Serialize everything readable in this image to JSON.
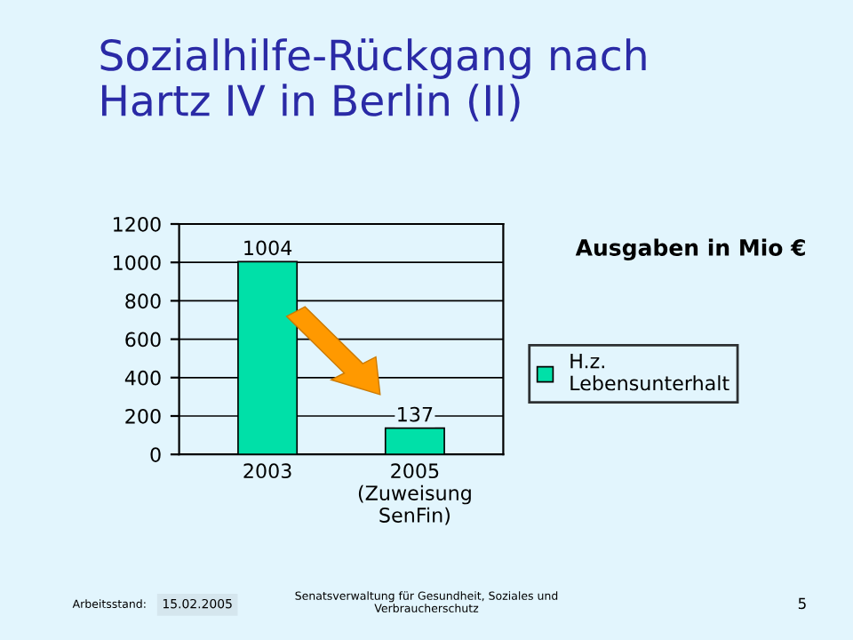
{
  "chart_data": {
    "type": "bar",
    "title": "Sozialhilfe-Rückgang nach\nHartz IV in Berlin (II)",
    "subtitle": "Ausgaben in Mio €",
    "categories": [
      "2003",
      "2005\n(Zuweisung\nSenFin)"
    ],
    "series": [
      {
        "name": "H.z.\nLebensunterhalt",
        "color": "#00e0a8",
        "values": [
          1004,
          137
        ]
      }
    ],
    "ylim": [
      0,
      1200
    ],
    "yticks": [
      0,
      200,
      400,
      600,
      800,
      1000,
      1200
    ],
    "grid": "y",
    "legend": "right",
    "data_labels": true,
    "annotations": [
      "Arbeitsstand:",
      "15.02.2005",
      "Senatsverwaltung für Gesundheit, Soziales und\nVerbraucherschutz",
      "5"
    ]
  }
}
